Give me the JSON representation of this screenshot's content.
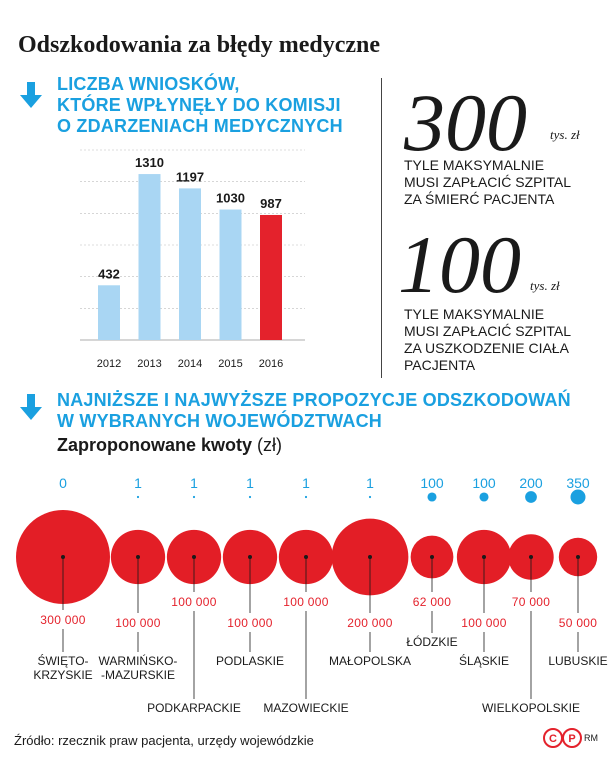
{
  "title": "Odszkodowania za błędy medyczne",
  "section1": {
    "heading_lines": [
      "LICZBA WNIOSKÓW,",
      "KTÓRE WPŁYNĘŁY DO KOMISJI",
      "O ZDARZENIACH MEDYCZNYCH"
    ]
  },
  "facts": [
    {
      "value": "300",
      "unit": "tys. zł",
      "lines": [
        "TYLE MAKSYMALNIE",
        "MUSI ZAPŁACIĆ SZPITAL",
        "ZA ŚMIERĆ PACJENTA"
      ]
    },
    {
      "value": "100",
      "unit": "tys. zł",
      "lines": [
        "TYLE MAKSYMALNIE",
        "MUSI ZAPŁACIĆ SZPITAL",
        "ZA USZKODZENIE CIAŁA",
        "PACJENTA"
      ]
    }
  ],
  "section2": {
    "heading_lines": [
      "NAJNIŻSZE I NAJWYŻSZE PROPOZYCJE ODSZKODOWAŃ",
      "W WYBRANYCH WOJEWÓDZTWACH"
    ],
    "subtitle": "Zaproponowane kwoty",
    "subtitle_unit": "(zł)"
  },
  "colors": {
    "accent_blue": "#1aa0e0",
    "bar_blue": "#a9d6f3",
    "red": "#e4222c",
    "bubble_red": "#e31e26"
  },
  "source": "Źródło: rzecznik praw pacjenta, urzędy wojewódzkie",
  "credit": "RM",
  "logo_text": "CP",
  "chart_data": [
    {
      "type": "bar",
      "categories": [
        "2012",
        "2013",
        "2014",
        "2015",
        "2016"
      ],
      "values": [
        432,
        1310,
        1197,
        1030,
        987
      ],
      "labels": [
        "432",
        "1310",
        "1197",
        "1030",
        "987"
      ],
      "highlight_index": 4,
      "ylim": [
        0,
        1500
      ],
      "grid": true
    },
    {
      "type": "bubble",
      "regions": [
        {
          "name": "ŚWIĘTO-\nKRZYSKIE",
          "min": 0,
          "min_label": "0",
          "max": 300000,
          "max_label": "300 000"
        },
        {
          "name": "WARMIŃSKO-\n-MAZURSKIE",
          "min": 1,
          "min_label": "1",
          "max": 100000,
          "max_label": "100 000"
        },
        {
          "name": "PODKARPACKIE",
          "min": 1,
          "min_label": "1",
          "max": 100000,
          "max_label": "100 000"
        },
        {
          "name": "PODLASKIE",
          "min": 1,
          "min_label": "1",
          "max": 100000,
          "max_label": "100 000"
        },
        {
          "name": "MAZOWIECKIE",
          "min": 1,
          "min_label": "1",
          "max": 100000,
          "max_label": "100 000"
        },
        {
          "name": "MAŁOPOLSKA",
          "min": 1,
          "min_label": "1",
          "max": 200000,
          "max_label": "200 000"
        },
        {
          "name": "ŁÓDZKIE",
          "min": 100,
          "min_label": "100",
          "max": 62000,
          "max_label": "62 000"
        },
        {
          "name": "ŚLĄSKIE",
          "min": 100,
          "min_label": "100",
          "max": 100000,
          "max_label": "100 000"
        },
        {
          "name": "WIELKOPOLSKIE",
          "min": 200,
          "min_label": "200",
          "max": 70000,
          "max_label": "70 000"
        },
        {
          "name": "LUBUSKIE",
          "min": 350,
          "min_label": "350",
          "max": 50000,
          "max_label": "50 000"
        }
      ]
    }
  ]
}
